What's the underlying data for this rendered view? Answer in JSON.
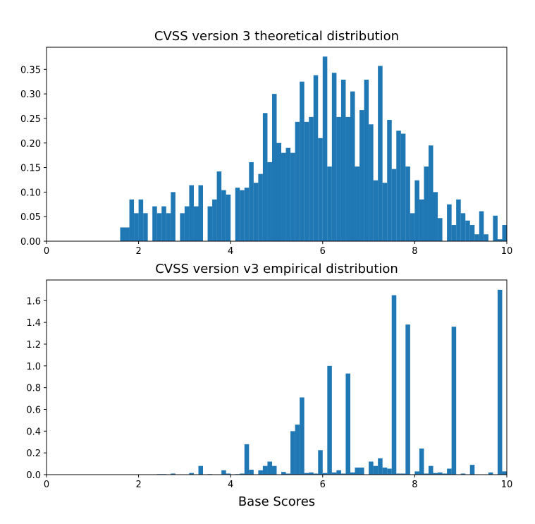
{
  "chart_data": [
    {
      "type": "histogram",
      "title": "CVSS version 3 theoretical distribution",
      "color": "#1f77b4",
      "bins": [
        0,
        0.1,
        0.2,
        0.3,
        0.4,
        0.5,
        0.6,
        0.7,
        0.8,
        0.9,
        1,
        1.1,
        1.2,
        1.3,
        1.4,
        1.5,
        1.6,
        1.7,
        1.8,
        1.9,
        2,
        2.1,
        2.2,
        2.3,
        2.4,
        2.5,
        2.6,
        2.7,
        2.8,
        2.9,
        3,
        3.1,
        3.2,
        3.3,
        3.4,
        3.5,
        3.6,
        3.7,
        3.8,
        3.9,
        4,
        4.1,
        4.2,
        4.3,
        4.4,
        4.5,
        4.6,
        4.7,
        4.8,
        4.9,
        5,
        5.1,
        5.2,
        5.3,
        5.4,
        5.5,
        5.6,
        5.7,
        5.8,
        5.9,
        6,
        6.1,
        6.2,
        6.3,
        6.4,
        6.5,
        6.6,
        6.7,
        6.8,
        6.9,
        7,
        7.1,
        7.2,
        7.3,
        7.4,
        7.5,
        7.6,
        7.7,
        7.8,
        7.9,
        8,
        8.1,
        8.2,
        8.3,
        8.4,
        8.5,
        8.6,
        8.7,
        8.8,
        8.9,
        9,
        9.1,
        9.2,
        9.3,
        9.4,
        9.5,
        9.6,
        9.7,
        9.8,
        9.9,
        10
      ],
      "values": [
        0,
        0,
        0,
        0,
        0,
        0,
        0,
        0,
        0,
        0,
        0,
        0,
        0,
        0,
        0,
        0,
        0.028,
        0.028,
        0.085,
        0.057,
        0.085,
        0.057,
        0,
        0.071,
        0.057,
        0.071,
        0.057,
        0.1,
        0,
        0.057,
        0.071,
        0.114,
        0.071,
        0.114,
        0,
        0.071,
        0.085,
        0.142,
        0.104,
        0.095,
        0,
        0.109,
        0.104,
        0.109,
        0.161,
        0.119,
        0.137,
        0.261,
        0.161,
        0.3,
        0.2,
        0.18,
        0.19,
        0.18,
        0.243,
        0.325,
        0.243,
        0.253,
        0.338,
        0.21,
        0.376,
        0.152,
        0.343,
        0.253,
        0.329,
        0.253,
        0.305,
        0.152,
        0.267,
        0.329,
        0.238,
        0.124,
        0.357,
        0.119,
        0.247,
        0.147,
        0.225,
        0.219,
        0.152,
        0.057,
        0.124,
        0.085,
        0.152,
        0.195,
        0.1,
        0.047,
        0,
        0.075,
        0.033,
        0.085,
        0.057,
        0.042,
        0.033,
        0.014,
        0.061,
        0.014,
        0,
        0.052,
        0.004,
        0.033
      ],
      "xlim": [
        0,
        10
      ],
      "xticks": [
        0,
        2,
        4,
        6,
        8,
        10
      ],
      "ylim": [
        0,
        0.395
      ],
      "yticks": [
        {
          "value": 0,
          "label": "0.00"
        },
        {
          "value": 0.05,
          "label": "0.05"
        },
        {
          "value": 0.1,
          "label": "0.10"
        },
        {
          "value": 0.15,
          "label": "0.15"
        },
        {
          "value": 0.2,
          "label": "0.20"
        },
        {
          "value": 0.25,
          "label": "0.25"
        },
        {
          "value": 0.3,
          "label": "0.30"
        },
        {
          "value": 0.35,
          "label": "0.35"
        }
      ]
    },
    {
      "type": "histogram",
      "title": "CVSS version v3 empirical distribution",
      "xlabel": "Base Scores",
      "color": "#1f77b4",
      "bins": [
        0,
        0.1,
        0.2,
        0.3,
        0.4,
        0.5,
        0.6,
        0.7,
        0.8,
        0.9,
        1,
        1.1,
        1.2,
        1.3,
        1.4,
        1.5,
        1.6,
        1.7,
        1.8,
        1.9,
        2,
        2.1,
        2.2,
        2.3,
        2.4,
        2.5,
        2.6,
        2.7,
        2.8,
        2.9,
        3,
        3.1,
        3.2,
        3.3,
        3.4,
        3.5,
        3.6,
        3.7,
        3.8,
        3.9,
        4,
        4.1,
        4.2,
        4.3,
        4.4,
        4.5,
        4.6,
        4.7,
        4.8,
        4.9,
        5,
        5.1,
        5.2,
        5.3,
        5.4,
        5.5,
        5.6,
        5.7,
        5.8,
        5.9,
        6,
        6.1,
        6.2,
        6.3,
        6.4,
        6.5,
        6.6,
        6.7,
        6.8,
        6.9,
        7,
        7.1,
        7.2,
        7.3,
        7.4,
        7.5,
        7.6,
        7.7,
        7.8,
        7.9,
        8,
        8.1,
        8.2,
        8.3,
        8.4,
        8.5,
        8.6,
        8.7,
        8.8,
        8.9,
        9,
        9.1,
        9.2,
        9.3,
        9.4,
        9.5,
        9.6,
        9.7,
        9.8,
        9.9,
        10
      ],
      "values": [
        0,
        0,
        0,
        0,
        0,
        0,
        0,
        0,
        0,
        0,
        0,
        0,
        0,
        0,
        0,
        0,
        0,
        0,
        0,
        0,
        0,
        0,
        0,
        0,
        0.005,
        0.005,
        0,
        0.01,
        0,
        0,
        0,
        0.015,
        0,
        0.08,
        0,
        0.005,
        0,
        0,
        0.04,
        0.01,
        0,
        0.005,
        0.01,
        0.28,
        0.045,
        0,
        0.04,
        0.08,
        0.12,
        0.08,
        0,
        0.025,
        0.01,
        0.4,
        0.46,
        0.71,
        0.015,
        0.02,
        0.01,
        0.225,
        0.015,
        1.0,
        0.02,
        0.04,
        0.01,
        0.93,
        0.02,
        0.065,
        0.065,
        0,
        0.12,
        0.08,
        0.15,
        0.065,
        0.055,
        1.65,
        0.01,
        0.01,
        1.38,
        0,
        0.03,
        0.24,
        0.01,
        0.08,
        0.015,
        0.02,
        0.01,
        0.055,
        1.36,
        0,
        0.01,
        0,
        0.09,
        0,
        0,
        0,
        0.02,
        0,
        1.7,
        0.03
      ],
      "xlim": [
        0,
        10
      ],
      "xticks": [
        0,
        2,
        4,
        6,
        8,
        10
      ],
      "ylim": [
        0,
        1.79
      ],
      "yticks": [
        {
          "value": 0,
          "label": "0.0"
        },
        {
          "value": 0.2,
          "label": "0.2"
        },
        {
          "value": 0.4,
          "label": "0.4"
        },
        {
          "value": 0.6,
          "label": "0.6"
        },
        {
          "value": 0.8,
          "label": "0.8"
        },
        {
          "value": 1.0,
          "label": "1.0"
        },
        {
          "value": 1.2,
          "label": "1.2"
        },
        {
          "value": 1.4,
          "label": "1.4"
        },
        {
          "value": 1.6,
          "label": "1.6"
        }
      ]
    }
  ]
}
